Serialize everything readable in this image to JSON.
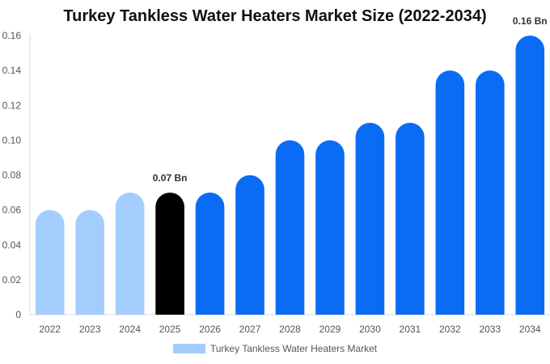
{
  "chart_data": {
    "type": "bar",
    "title": "Turkey Tankless Water Heaters Market Size (2022-2034)",
    "categories": [
      "2022",
      "2023",
      "2024",
      "2025",
      "2026",
      "2027",
      "2028",
      "2029",
      "2030",
      "2031",
      "2032",
      "2033",
      "2034"
    ],
    "series": [
      {
        "name": "Turkey Tankless Water Heaters Market",
        "values": [
          0.06,
          0.06,
          0.07,
          0.07,
          0.07,
          0.08,
          0.1,
          0.1,
          0.11,
          0.11,
          0.14,
          0.14,
          0.16
        ]
      }
    ],
    "ylim": [
      0,
      0.16
    ],
    "yticks": [
      "0",
      "0.02",
      "0.04",
      "0.06",
      "0.08",
      "0.10",
      "0.12",
      "0.14",
      "0.16"
    ],
    "annotations": [
      {
        "category": "2025",
        "text": "0.07 Bn"
      },
      {
        "category": "2034",
        "text": "0.16 Bn"
      }
    ],
    "bar_colors": {
      "historical": "#a3cdfd",
      "current": "#000000",
      "forecast": "#0a6cf5"
    },
    "bar_groups": [
      "historical",
      "historical",
      "historical",
      "current",
      "forecast",
      "forecast",
      "forecast",
      "forecast",
      "forecast",
      "forecast",
      "forecast",
      "forecast",
      "forecast"
    ],
    "legend_color": "#a3cdfd",
    "grid": false,
    "legend_position": "bottom"
  }
}
